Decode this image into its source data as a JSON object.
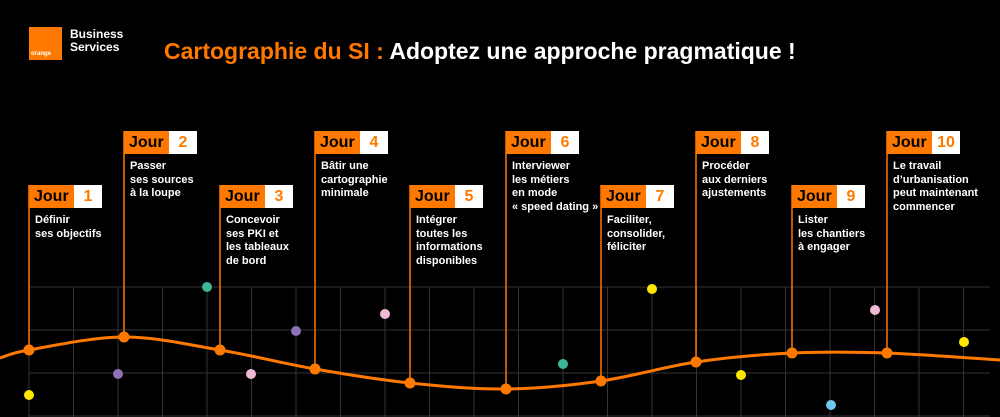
{
  "brand": {
    "logo_text": "orange",
    "line1": "Business",
    "line2": "Services"
  },
  "title": {
    "highlight": "Cartographie du SI :",
    "rest": " Adoptez  une approche pragmatique !"
  },
  "day_label": "Jour",
  "days": [
    {
      "number": "1",
      "lines": [
        "Définir",
        "ses objectifs"
      ]
    },
    {
      "number": "2",
      "lines": [
        "Passer",
        "ses sources",
        "à la loupe"
      ]
    },
    {
      "number": "3",
      "lines": [
        "Concevoir",
        "ses PKI et",
        "les tableaux",
        "de bord"
      ]
    },
    {
      "number": "4",
      "lines": [
        "Bâtir une",
        "cartographie",
        "minimale"
      ]
    },
    {
      "number": "5",
      "lines": [
        "Intégrer",
        "toutes les",
        "informations",
        "disponibles"
      ]
    },
    {
      "number": "6",
      "lines": [
        "Interviewer",
        "les métiers",
        "en mode",
        "« speed dating »"
      ]
    },
    {
      "number": "7",
      "lines": [
        "Faciliter,",
        "consolider,",
        "féliciter"
      ]
    },
    {
      "number": "8",
      "lines": [
        "Procéder",
        "aux derniers",
        "ajustements"
      ]
    },
    {
      "number": "9",
      "lines": [
        "Lister",
        "les chantiers",
        "à engager"
      ]
    },
    {
      "number": "10",
      "lines": [
        "Le travail",
        "d’urbanisation",
        "peut maintenant",
        "commencer"
      ]
    }
  ],
  "colors": {
    "accent": "#ff7900",
    "grid": "#333333",
    "yellow": "#ffe600",
    "purple": "#8e72b8",
    "teal": "#3fb59a",
    "pink": "#f2b8d8",
    "blue": "#6fc8f0"
  }
}
